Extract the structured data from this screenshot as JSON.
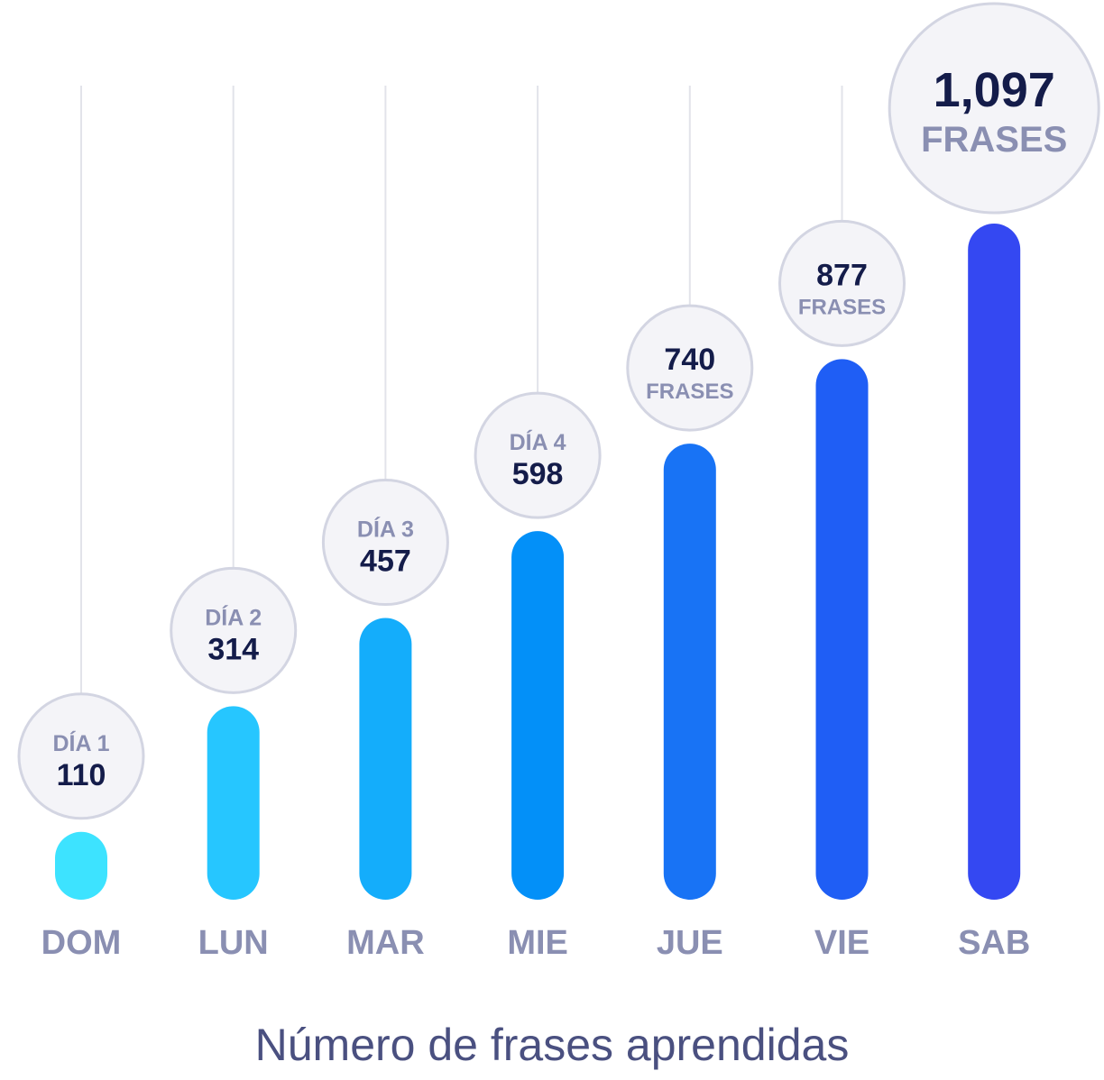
{
  "chart_data": {
    "type": "bar",
    "categories": [
      "DOM",
      "LUN",
      "MAR",
      "MIE",
      "JUE",
      "VIE",
      "SAB"
    ],
    "values": [
      110,
      314,
      457,
      598,
      740,
      877,
      1097
    ],
    "bubble_top_labels": [
      "DÍA 1",
      "DÍA 2",
      "DÍA 3",
      "DÍA 4",
      "",
      "",
      ""
    ],
    "bubble_value_labels": [
      "110",
      "314",
      "457",
      "598",
      "740",
      "877",
      "1,097"
    ],
    "bubble_bottom_labels": [
      "",
      "",
      "",
      "",
      "FRASES",
      "FRASES",
      "FRASES"
    ],
    "xlabel": "Número de frases aprendidas",
    "ylabel": "",
    "ylim": [
      0,
      1200
    ],
    "grid": false,
    "bar_colors": [
      "#3de3ff",
      "#26c6ff",
      "#14adfb",
      "#0390f8",
      "#1873f5",
      "#1f5ef5",
      "#3448f2"
    ],
    "highlight_value_color": "#1f46f5",
    "bubble_fill": "#f4f4f8",
    "bubble_stroke": "#d3d5e2"
  }
}
